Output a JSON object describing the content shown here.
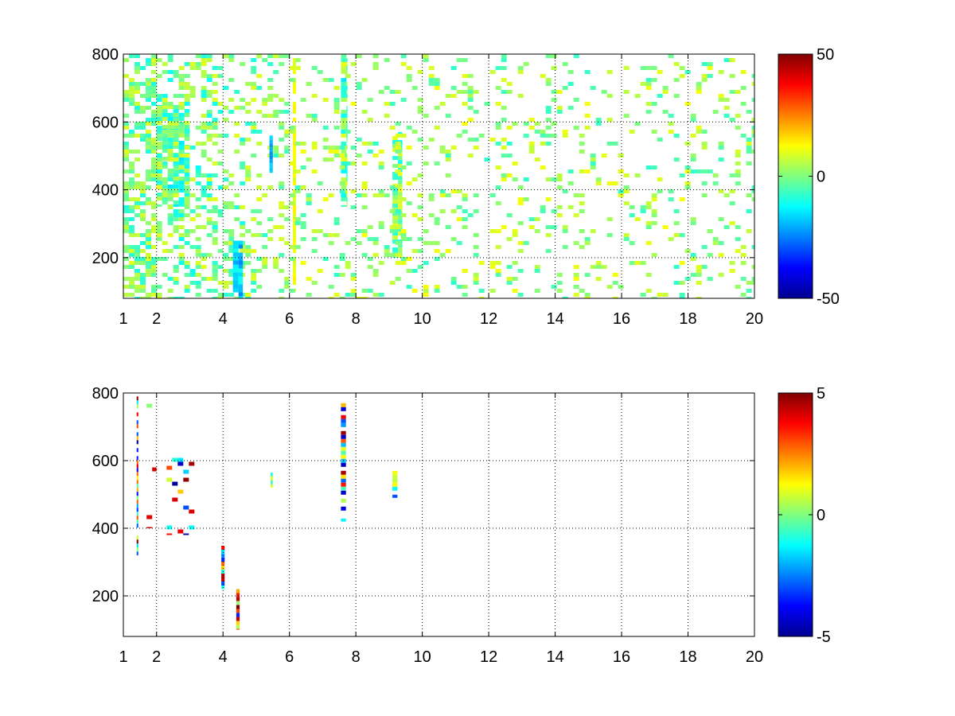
{
  "chart_data": [
    {
      "type": "heatmap",
      "title": "",
      "xlabel": "",
      "ylabel": "",
      "xlim": [
        1,
        20
      ],
      "ylim": [
        80,
        800
      ],
      "x_ticks": [
        1,
        2,
        4,
        6,
        8,
        10,
        12,
        14,
        16,
        18,
        20
      ],
      "y_ticks": [
        200,
        400,
        600,
        800
      ],
      "grid": true,
      "colormap": "jet",
      "clim": [
        -50,
        50
      ],
      "colorbar_ticks": [
        -50,
        0,
        50
      ],
      "features": [
        {
          "x": [
            1.0,
            2.0
          ],
          "y": [
            80,
            800
          ],
          "density": 0.55,
          "value_range": [
            -10,
            10
          ]
        },
        {
          "x": [
            2.0,
            3.0
          ],
          "y": [
            350,
            650
          ],
          "density": 0.75,
          "value_range": [
            -15,
            8
          ]
        },
        {
          "x": [
            2.0,
            4.0
          ],
          "y": [
            80,
            800
          ],
          "density": 0.35,
          "value_range": [
            -12,
            10
          ]
        },
        {
          "x": [
            4.0,
            6.0
          ],
          "y": [
            80,
            800
          ],
          "density": 0.25,
          "value_range": [
            -10,
            10
          ]
        },
        {
          "x": [
            4.3,
            4.6
          ],
          "y": [
            80,
            250
          ],
          "density": 0.7,
          "value_range": [
            -25,
            -10
          ]
        },
        {
          "x": [
            5.4,
            5.5
          ],
          "y": [
            450,
            560
          ],
          "density": 0.8,
          "value_range": [
            -25,
            -10
          ]
        },
        {
          "x": [
            6.1,
            6.2
          ],
          "y": [
            100,
            800
          ],
          "density": 0.8,
          "value_range": [
            8,
            14
          ]
        },
        {
          "x": [
            7.55,
            7.75
          ],
          "y": [
            350,
            800
          ],
          "density": 0.85,
          "value_range": [
            -15,
            12
          ]
        },
        {
          "x": [
            9.1,
            9.4
          ],
          "y": [
            200,
            570
          ],
          "density": 0.85,
          "value_range": [
            -12,
            12
          ]
        },
        {
          "x": [
            6.0,
            20.0
          ],
          "y": [
            80,
            800
          ],
          "density": 0.14,
          "value_range": [
            -8,
            12
          ]
        }
      ]
    },
    {
      "type": "heatmap",
      "title": "",
      "xlabel": "",
      "ylabel": "",
      "xlim": [
        1,
        20
      ],
      "ylim": [
        80,
        800
      ],
      "x_ticks": [
        1,
        2,
        4,
        6,
        8,
        10,
        12,
        14,
        16,
        18,
        20
      ],
      "y_ticks": [
        200,
        400,
        600,
        800
      ],
      "grid": true,
      "colormap": "jet",
      "clim": [
        -5,
        5
      ],
      "colorbar_ticks": [
        -5,
        0,
        5
      ],
      "features": [
        {
          "x": [
            1.4,
            1.45
          ],
          "y": [
            320,
            790
          ],
          "density": 0.9,
          "value_range": [
            -5,
            5
          ]
        },
        {
          "x": [
            1.7,
            2.0
          ],
          "y": [
            400,
            780
          ],
          "density": 0.08,
          "value_range": [
            -5,
            5
          ]
        },
        {
          "x": [
            2.3,
            3.2
          ],
          "y": [
            380,
            620
          ],
          "density": 0.12,
          "value_range": [
            -5,
            5
          ]
        },
        {
          "x": [
            3.95,
            4.05
          ],
          "y": [
            220,
            360
          ],
          "density": 0.9,
          "value_range": [
            -5,
            5
          ]
        },
        {
          "x": [
            4.4,
            4.5
          ],
          "y": [
            100,
            220
          ],
          "density": 0.9,
          "value_range": [
            -5,
            5
          ]
        },
        {
          "x": [
            5.43,
            5.5
          ],
          "y": [
            520,
            565
          ],
          "density": 0.9,
          "value_range": [
            -1,
            2
          ]
        },
        {
          "x": [
            7.55,
            7.7
          ],
          "y": [
            420,
            770
          ],
          "density": 0.6,
          "value_range": [
            -5,
            5
          ]
        },
        {
          "x": [
            9.1,
            9.25
          ],
          "y": [
            490,
            570
          ],
          "density": 0.9,
          "value_range": [
            -3,
            2
          ]
        }
      ]
    }
  ]
}
